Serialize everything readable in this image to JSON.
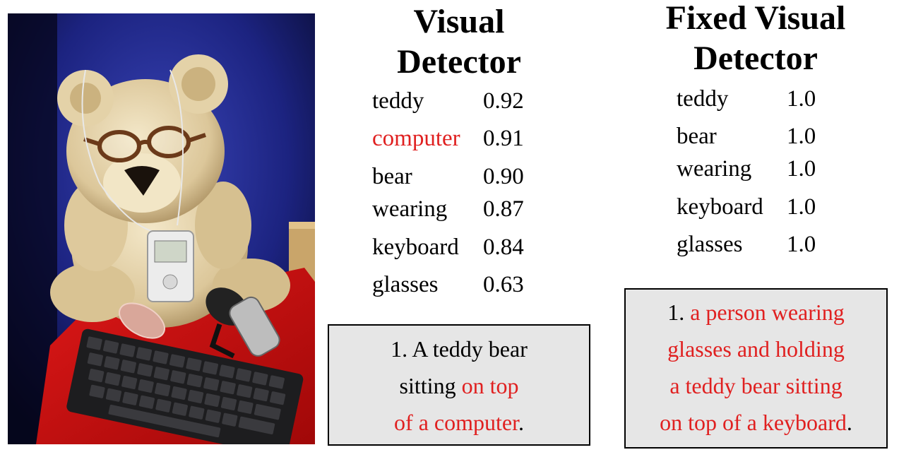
{
  "columns": {
    "visual": {
      "heading": [
        "Visual",
        "Detector"
      ],
      "detections": [
        {
          "word": "teddy",
          "score": "0.92",
          "highlight": false
        },
        {
          "word": "computer",
          "score": "0.91",
          "highlight": true
        },
        {
          "word": "bear",
          "score": "0.90",
          "highlight": false
        },
        {
          "word": "wearing",
          "score": "0.87",
          "highlight": false
        },
        {
          "word": "keyboard",
          "score": "0.84",
          "highlight": false
        },
        {
          "word": "glasses",
          "score": "0.63",
          "highlight": false
        }
      ],
      "caption_lines": [
        [
          {
            "text": "1. A teddy bear",
            "red": false
          }
        ],
        [
          {
            "text": "sitting ",
            "red": false
          },
          {
            "text": "on top",
            "red": true
          }
        ],
        [
          {
            "text": "of a computer",
            "red": true
          },
          {
            "text": ".",
            "red": false
          }
        ]
      ]
    },
    "fixed": {
      "heading": [
        "Fixed Visual",
        "Detector"
      ],
      "detections": [
        {
          "word": "teddy",
          "score": "1.0",
          "highlight": false
        },
        {
          "word": "bear",
          "score": "1.0",
          "highlight": false
        },
        {
          "word": "wearing",
          "score": "1.0",
          "highlight": false
        },
        {
          "word": "keyboard",
          "score": "1.0",
          "highlight": false
        },
        {
          "word": "glasses",
          "score": "1.0",
          "highlight": false
        }
      ],
      "caption_lines": [
        [
          {
            "text": "1. ",
            "red": false
          },
          {
            "text": "a person wearing",
            "red": true
          }
        ],
        [
          {
            "text": "glasses and holding",
            "red": true
          }
        ],
        [
          {
            "text": "a teddy bear sitting",
            "red": true
          }
        ],
        [
          {
            "text": "on top of a keyboard",
            "red": true
          },
          {
            "text": ".",
            "red": false
          }
        ]
      ]
    }
  },
  "colors": {
    "highlight": "#e02020",
    "caption_bg": "#e6e6e6"
  }
}
